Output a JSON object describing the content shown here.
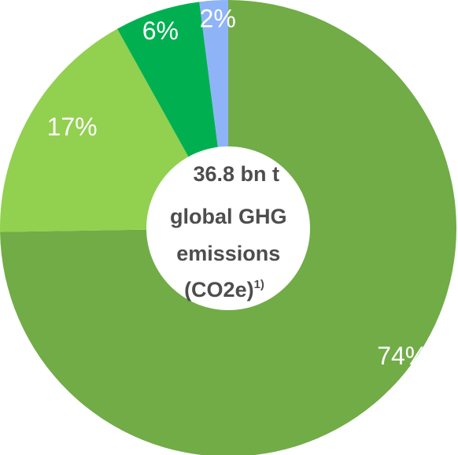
{
  "chart_data": {
    "type": "pie",
    "subtype": "donut",
    "slices": [
      {
        "label": "74%",
        "value": 74,
        "color": "#71ac47"
      },
      {
        "label": "17%",
        "value": 17,
        "color": "#92d050"
      },
      {
        "label": "6%",
        "value": 6,
        "color": "#00b050"
      },
      {
        "label": "2%",
        "value": 2,
        "color": "#8eb4f7"
      }
    ],
    "start_angle_deg": 0,
    "direction": "clockwise",
    "center_label": {
      "lines": [
        "36.8 bn t",
        "global GHG",
        "emissions",
        "(CO2e)"
      ],
      "superscript": "1)"
    },
    "legend": "none"
  }
}
